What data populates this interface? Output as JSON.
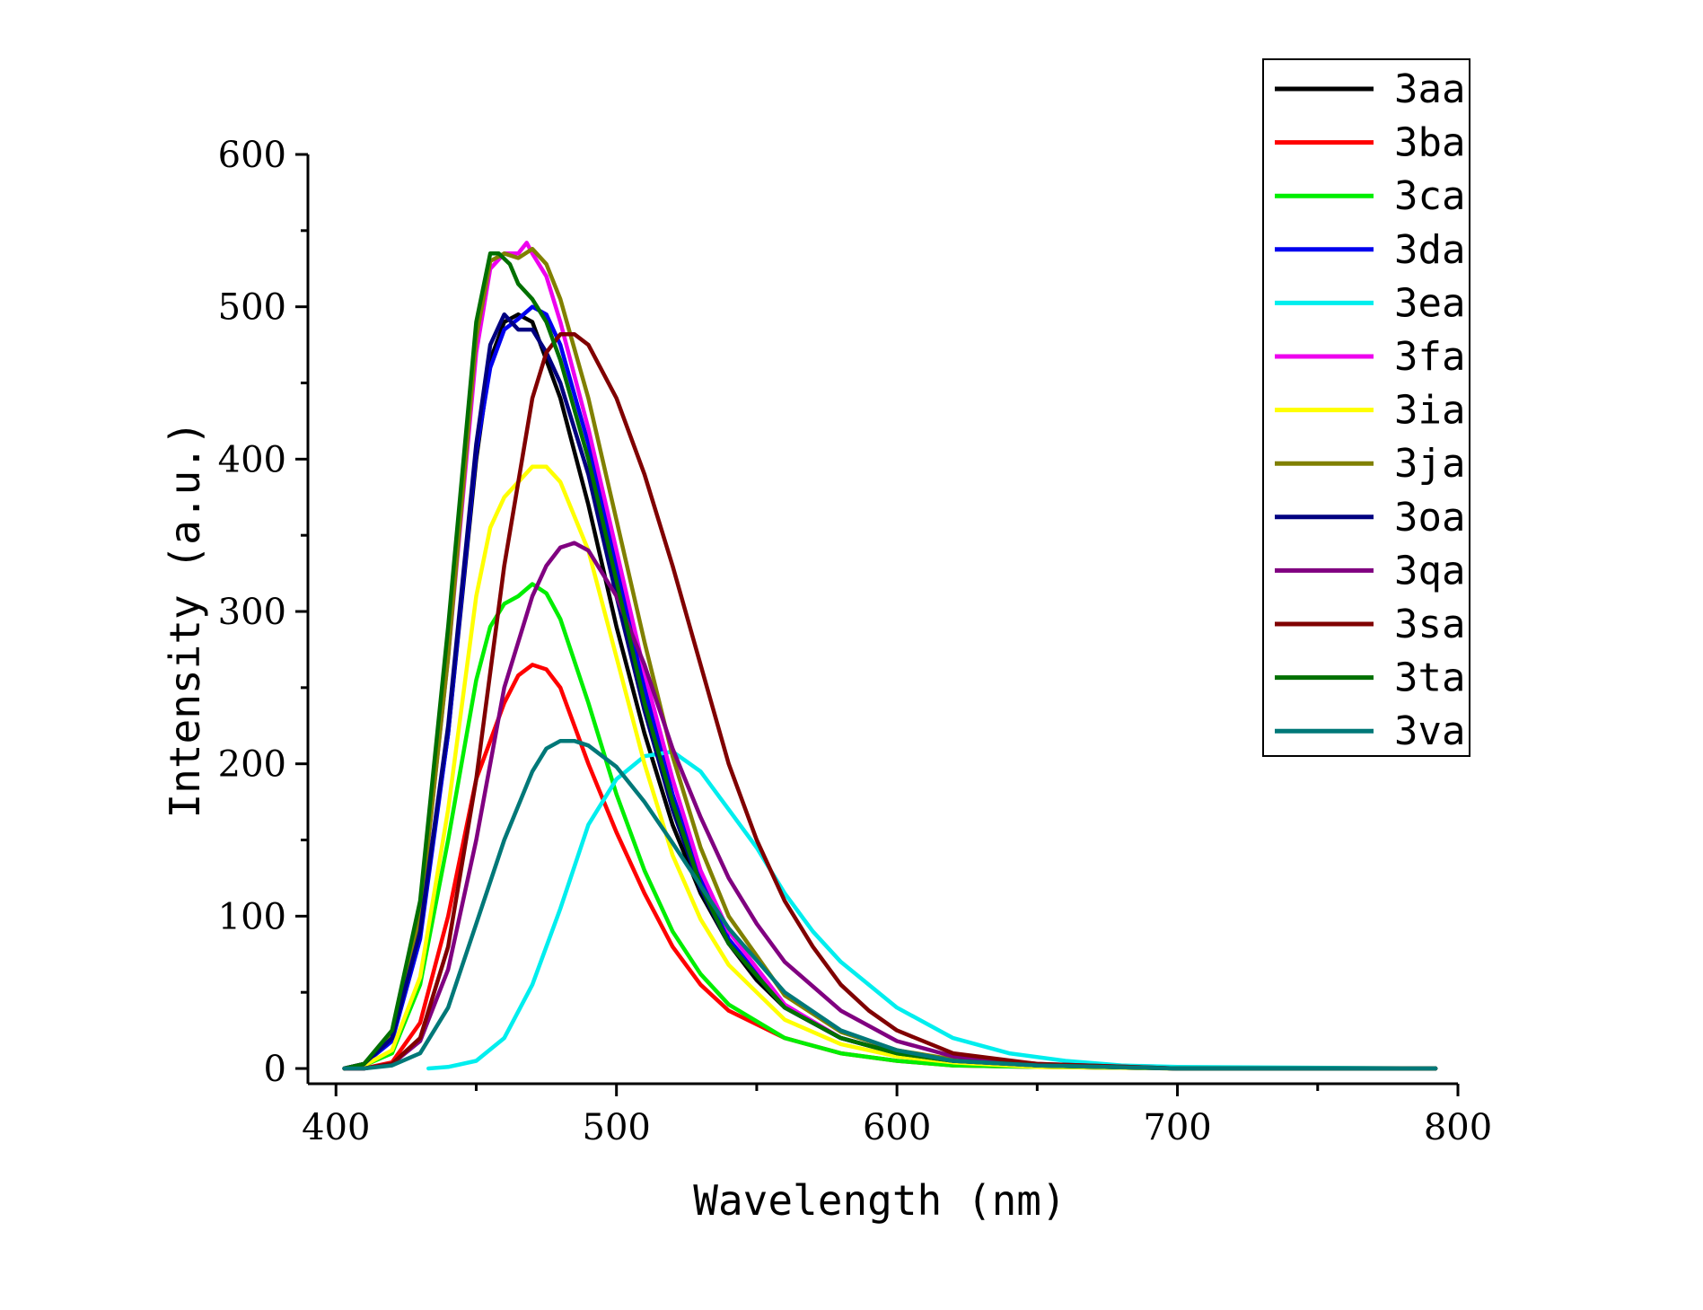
{
  "chart_data": {
    "type": "line",
    "xlabel": "Wavelength (nm)",
    "ylabel": "Intensity (a.u.)",
    "xlim": [
      390,
      800
    ],
    "ylim": [
      -10,
      600
    ],
    "x_ticks": [
      400,
      500,
      600,
      700,
      800
    ],
    "y_ticks": [
      0,
      100,
      200,
      300,
      400,
      500,
      600
    ],
    "grid": false,
    "legend_position": "top-right",
    "series": [
      {
        "name": "3aa",
        "color": "#000000",
        "x": [
          403,
          410,
          420,
          430,
          440,
          450,
          455,
          460,
          465,
          470,
          480,
          490,
          500,
          510,
          520,
          530,
          540,
          550,
          560,
          580,
          600,
          620,
          650,
          700,
          792
        ],
        "y": [
          0,
          3,
          20,
          90,
          220,
          400,
          465,
          490,
          495,
          490,
          440,
          370,
          290,
          220,
          160,
          115,
          82,
          58,
          40,
          20,
          10,
          5,
          2,
          0,
          0
        ]
      },
      {
        "name": "3ba",
        "color": "#ff0000",
        "x": [
          403,
          410,
          420,
          430,
          440,
          450,
          460,
          465,
          470,
          475,
          480,
          490,
          500,
          510,
          520,
          530,
          540,
          560,
          580,
          600,
          620,
          650,
          700,
          792
        ],
        "y": [
          0,
          0,
          4,
          30,
          100,
          190,
          240,
          258,
          265,
          262,
          250,
          200,
          155,
          115,
          80,
          55,
          38,
          20,
          10,
          5,
          2,
          1,
          0,
          0
        ]
      },
      {
        "name": "3ca",
        "color": "#00ee00",
        "x": [
          403,
          410,
          420,
          430,
          440,
          450,
          455,
          460,
          465,
          470,
          475,
          480,
          490,
          500,
          510,
          520,
          530,
          540,
          560,
          580,
          600,
          620,
          650,
          700,
          792
        ],
        "y": [
          0,
          2,
          10,
          55,
          150,
          255,
          290,
          305,
          310,
          318,
          312,
          295,
          240,
          180,
          130,
          90,
          62,
          42,
          20,
          10,
          5,
          2,
          1,
          0,
          0
        ]
      },
      {
        "name": "3da",
        "color": "#0000ee",
        "x": [
          403,
          410,
          420,
          430,
          440,
          450,
          455,
          460,
          465,
          470,
          475,
          480,
          490,
          500,
          510,
          520,
          530,
          540,
          560,
          580,
          600,
          620,
          650,
          700,
          792
        ],
        "y": [
          0,
          3,
          18,
          85,
          220,
          405,
          460,
          485,
          492,
          500,
          495,
          475,
          410,
          330,
          250,
          180,
          125,
          85,
          40,
          20,
          10,
          5,
          2,
          0,
          0
        ]
      },
      {
        "name": "3ea",
        "color": "#00eeee",
        "x": [
          433,
          440,
          450,
          460,
          470,
          480,
          490,
          500,
          510,
          520,
          530,
          540,
          550,
          560,
          570,
          580,
          600,
          620,
          640,
          660,
          680,
          700,
          792
        ],
        "y": [
          0,
          1,
          5,
          20,
          55,
          105,
          160,
          190,
          205,
          208,
          195,
          170,
          145,
          115,
          90,
          70,
          40,
          20,
          10,
          5,
          2,
          1,
          0
        ]
      },
      {
        "name": "3fa",
        "color": "#ee00ee",
        "x": [
          403,
          410,
          420,
          430,
          440,
          450,
          455,
          460,
          465,
          468,
          470,
          475,
          480,
          490,
          500,
          510,
          520,
          530,
          540,
          560,
          580,
          600,
          620,
          650,
          700,
          792
        ],
        "y": [
          0,
          3,
          22,
          100,
          270,
          470,
          525,
          535,
          535,
          542,
          535,
          520,
          490,
          420,
          340,
          260,
          190,
          130,
          90,
          42,
          20,
          10,
          5,
          2,
          0,
          0
        ]
      },
      {
        "name": "3ia",
        "color": "#ffff00",
        "x": [
          403,
          410,
          420,
          430,
          440,
          450,
          455,
          460,
          465,
          470,
          475,
          480,
          490,
          500,
          510,
          520,
          530,
          540,
          560,
          580,
          600,
          620,
          650,
          700,
          792
        ],
        "y": [
          0,
          2,
          12,
          60,
          170,
          310,
          355,
          375,
          385,
          395,
          395,
          385,
          340,
          270,
          200,
          140,
          98,
          68,
          32,
          16,
          8,
          4,
          1,
          0,
          0
        ]
      },
      {
        "name": "3ja",
        "color": "#808000",
        "x": [
          403,
          410,
          420,
          430,
          440,
          450,
          455,
          460,
          465,
          470,
          475,
          480,
          490,
          500,
          510,
          520,
          530,
          540,
          560,
          580,
          600,
          620,
          650,
          700,
          792
        ],
        "y": [
          0,
          3,
          22,
          100,
          270,
          480,
          530,
          535,
          532,
          538,
          528,
          505,
          440,
          360,
          280,
          205,
          145,
          100,
          48,
          24,
          12,
          6,
          2,
          0,
          0
        ]
      },
      {
        "name": "3oa",
        "color": "#000080",
        "x": [
          403,
          410,
          420,
          430,
          440,
          450,
          455,
          460,
          465,
          470,
          475,
          480,
          490,
          500,
          510,
          520,
          530,
          540,
          560,
          580,
          600,
          620,
          650,
          700,
          792
        ],
        "y": [
          0,
          3,
          20,
          90,
          225,
          410,
          475,
          495,
          485,
          485,
          470,
          450,
          390,
          310,
          235,
          170,
          118,
          82,
          40,
          20,
          10,
          5,
          2,
          0,
          0
        ]
      },
      {
        "name": "3qa",
        "color": "#800080",
        "x": [
          403,
          410,
          420,
          430,
          440,
          450,
          460,
          470,
          475,
          480,
          485,
          490,
          500,
          510,
          520,
          530,
          540,
          550,
          560,
          580,
          600,
          620,
          650,
          700,
          792
        ],
        "y": [
          0,
          0,
          3,
          18,
          65,
          150,
          250,
          310,
          330,
          342,
          345,
          340,
          310,
          265,
          210,
          165,
          125,
          95,
          70,
          38,
          18,
          8,
          3,
          0,
          0
        ]
      },
      {
        "name": "3sa",
        "color": "#800000",
        "x": [
          403,
          410,
          420,
          430,
          440,
          450,
          460,
          470,
          475,
          480,
          485,
          490,
          500,
          510,
          520,
          530,
          540,
          550,
          560,
          570,
          580,
          590,
          600,
          620,
          650,
          700,
          792
        ],
        "y": [
          0,
          0,
          3,
          20,
          80,
          190,
          330,
          440,
          470,
          482,
          482,
          475,
          440,
          390,
          330,
          265,
          200,
          150,
          110,
          80,
          55,
          38,
          25,
          10,
          3,
          0,
          0
        ]
      },
      {
        "name": "3ta",
        "color": "#007000",
        "x": [
          403,
          410,
          420,
          430,
          440,
          450,
          455,
          458,
          462,
          465,
          470,
          475,
          480,
          490,
          500,
          510,
          520,
          530,
          540,
          560,
          580,
          600,
          620,
          650,
          700,
          792
        ],
        "y": [
          0,
          3,
          25,
          110,
          290,
          490,
          535,
          535,
          528,
          515,
          505,
          490,
          465,
          400,
          320,
          240,
          175,
          120,
          82,
          40,
          20,
          10,
          5,
          2,
          0,
          0
        ]
      },
      {
        "name": "3va",
        "color": "#007878",
        "x": [
          403,
          410,
          420,
          430,
          440,
          450,
          460,
          470,
          475,
          480,
          485,
          490,
          500,
          510,
          520,
          530,
          540,
          560,
          580,
          600,
          620,
          650,
          700,
          792
        ],
        "y": [
          0,
          0,
          2,
          10,
          40,
          95,
          150,
          195,
          210,
          215,
          215,
          212,
          198,
          175,
          148,
          120,
          92,
          50,
          25,
          12,
          5,
          2,
          0,
          0
        ]
      }
    ]
  }
}
